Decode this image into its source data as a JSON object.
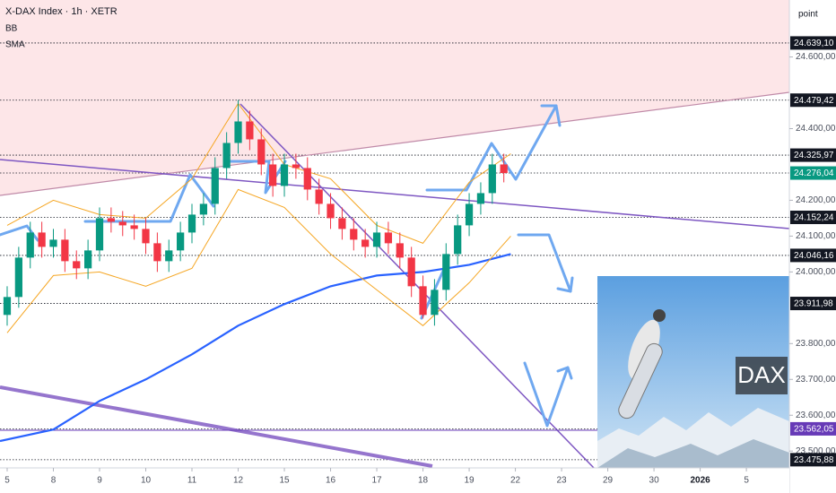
{
  "chart_data": {
    "type": "candlestick",
    "title": "X-DAX Index · 1h · XETR",
    "indicators": [
      "BB",
      "SMA"
    ],
    "y_axis_label": "point",
    "image_caption": "DAX",
    "xlim": [
      -0.155,
      16.93
    ],
    "ylim": [
      23458,
      24759
    ],
    "xticks": [
      {
        "value": 0,
        "label": "5"
      },
      {
        "value": 1,
        "label": "8"
      },
      {
        "value": 2,
        "label": "9"
      },
      {
        "value": 3,
        "label": "10"
      },
      {
        "value": 4,
        "label": "11"
      },
      {
        "value": 5,
        "label": "12"
      },
      {
        "value": 6,
        "label": "15"
      },
      {
        "value": 7,
        "label": "16"
      },
      {
        "value": 8,
        "label": "17"
      },
      {
        "value": 9,
        "label": "18"
      },
      {
        "value": 10,
        "label": "19"
      },
      {
        "value": 11,
        "label": "22"
      },
      {
        "value": 12,
        "label": "23"
      },
      {
        "value": 13,
        "label": "29"
      },
      {
        "value": 14,
        "label": "30"
      },
      {
        "value": 15,
        "label": "2026"
      },
      {
        "value": 16,
        "label": "5"
      }
    ],
    "yticks": [
      {
        "value": 24600,
        "label": "24.600,00"
      },
      {
        "value": 24400,
        "label": "24.400,00"
      },
      {
        "value": 24200,
        "label": "24.200,00"
      },
      {
        "value": 24100,
        "label": "24.100,00"
      },
      {
        "value": 24000,
        "label": "24.000,00"
      },
      {
        "value": 23800,
        "label": "23.800,00"
      },
      {
        "value": 23700,
        "label": "23.700,00"
      },
      {
        "value": 23600,
        "label": "23.600,00"
      },
      {
        "value": 23500,
        "label": "23.500,00"
      }
    ],
    "price_levels": [
      {
        "value": 24639.1,
        "label": "24.639,10",
        "color": "#131722"
      },
      {
        "value": 24479.42,
        "label": "24.479,42",
        "color": "#131722"
      },
      {
        "value": 24325.97,
        "label": "24.325,97",
        "color": "#131722"
      },
      {
        "value": 24276.04,
        "label": "24.276,04",
        "color": "#089981"
      },
      {
        "value": 24152.24,
        "label": "24.152,24",
        "color": "#131722"
      },
      {
        "value": 24046.16,
        "label": "24.046,16",
        "color": "#131722"
      },
      {
        "value": 23911.98,
        "label": "23.911,98",
        "color": "#131722"
      },
      {
        "value": 23562.05,
        "label": "23.562,05",
        "color": "#673ab7"
      },
      {
        "value": 23475.88,
        "label": "23.475,88",
        "color": "#131722"
      }
    ],
    "up_color": "#089981",
    "down_color": "#f23645",
    "candles": {
      "x": [
        0,
        0.25,
        0.5,
        0.75,
        1,
        1.25,
        1.5,
        1.75,
        2,
        2.25,
        2.5,
        2.75,
        3,
        3.25,
        3.5,
        3.75,
        4,
        4.25,
        4.5,
        4.75,
        5,
        5.25,
        5.5,
        5.75,
        6,
        6.25,
        6.5,
        6.75,
        7,
        7.25,
        7.5,
        7.75,
        8,
        8.25,
        8.5,
        8.75,
        9,
        9.25,
        9.5,
        9.75,
        10,
        10.25,
        10.5,
        10.75
      ],
      "open": [
        23880,
        23930,
        24040,
        24110,
        24070,
        24090,
        24030,
        24010,
        24060,
        24150,
        24140,
        24130,
        24120,
        24080,
        24030,
        24060,
        24110,
        24160,
        24190,
        24290,
        24360,
        24420,
        24370,
        24300,
        24240,
        24300,
        24290,
        24230,
        24190,
        24150,
        24120,
        24090,
        24070,
        24110,
        24080,
        24040,
        23960,
        23880,
        23950,
        24050,
        24130,
        24190,
        24220,
        24300
      ],
      "high": [
        23960,
        24070,
        24140,
        24140,
        24120,
        24120,
        24060,
        24090,
        24180,
        24180,
        24170,
        24160,
        24150,
        24110,
        24090,
        24140,
        24190,
        24220,
        24320,
        24390,
        24480,
        24450,
        24400,
        24330,
        24330,
        24330,
        24320,
        24260,
        24220,
        24180,
        24150,
        24120,
        24140,
        24140,
        24110,
        24070,
        23990,
        23980,
        24080,
        24160,
        24220,
        24250,
        24330,
        24330
      ],
      "low": [
        23850,
        23900,
        24010,
        24040,
        24040,
        24000,
        23980,
        23980,
        24030,
        24110,
        24100,
        24090,
        24050,
        24000,
        24000,
        24030,
        24080,
        24130,
        24160,
        24260,
        24330,
        24340,
        24270,
        24210,
        24210,
        24260,
        24200,
        24160,
        24120,
        24090,
        24060,
        24040,
        24040,
        24050,
        24010,
        23930,
        23870,
        23850,
        23920,
        24020,
        24100,
        24160,
        24190,
        24250
      ],
      "close": [
        23930,
        24040,
        24110,
        24070,
        24090,
        24030,
        24010,
        24060,
        24150,
        24140,
        24130,
        24120,
        24080,
        24030,
        24060,
        24110,
        24160,
        24190,
        24290,
        24360,
        24420,
        24370,
        24300,
        24240,
        24300,
        24290,
        24230,
        24190,
        24150,
        24120,
        24090,
        24070,
        24110,
        24080,
        24040,
        23960,
        23880,
        23950,
        24050,
        24130,
        24190,
        24220,
        24300,
        24276
      ]
    },
    "series": [
      {
        "name": "SMA",
        "color": "#2962ff",
        "width": 2.2,
        "x": [
          -0.155,
          1,
          2,
          3,
          4,
          5,
          6,
          7,
          8,
          9,
          10,
          10.9
        ],
        "values": [
          23528,
          23560,
          23640,
          23700,
          23770,
          23850,
          23910,
          23960,
          23990,
          24000,
          24020,
          24050
        ]
      },
      {
        "name": "BB upper",
        "color": "#f5a623",
        "width": 1,
        "x": [
          0,
          1,
          2,
          3,
          4,
          5,
          6,
          7,
          8,
          9,
          10,
          10.9
        ],
        "values": [
          24130,
          24200,
          24160,
          24150,
          24260,
          24470,
          24300,
          24260,
          24130,
          24080,
          24250,
          24330
        ]
      },
      {
        "name": "BB lower",
        "color": "#f5a623",
        "width": 1,
        "x": [
          0,
          1,
          2,
          3,
          4,
          5,
          6,
          7,
          8,
          9,
          10,
          10.9
        ],
        "values": [
          23830,
          23990,
          24000,
          23960,
          24010,
          24230,
          24180,
          24050,
          23950,
          23850,
          23970,
          24100
        ]
      }
    ]
  }
}
